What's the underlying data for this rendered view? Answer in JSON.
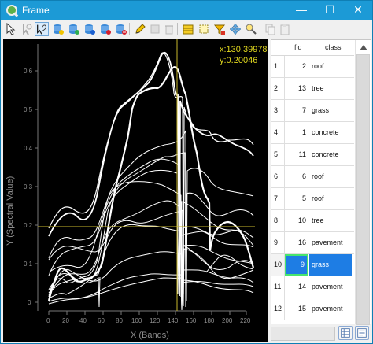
{
  "window": {
    "title": "Frame",
    "minimize": "—",
    "maximize": "☐",
    "close": "✕"
  },
  "toolbar": {
    "icons": [
      "select-arrow-icon",
      "lasso-select-icon",
      "layer-select-icon",
      "stack-yellow-icon",
      "stack-green-icon",
      "stack-blue-icon",
      "stack-red-icon",
      "stack-gray-icon",
      "edit-pencil-icon",
      "disabled-tool-icon",
      "disabled-trash-icon",
      "table-yellow-icon",
      "select-area-icon",
      "filter-icon",
      "pan-icon",
      "zoom-icon",
      "disabled-copy-icon",
      "disabled-paste-icon"
    ]
  },
  "plot": {
    "coord_x": "x:130.39978",
    "coord_y": "y:0.20046",
    "x_label": "X (Bands)",
    "y_label": "Y (Spectral Value)",
    "x_ticks": [
      "0",
      "20",
      "40",
      "60",
      "80",
      "100",
      "120",
      "140",
      "160",
      "180",
      "200",
      "220"
    ],
    "y_ticks": [
      "0",
      "0.1",
      "0.2",
      "0.3",
      "0.4",
      "0.5",
      "0.6"
    ],
    "colors": {
      "background": "#000000",
      "curve": "#ffffff",
      "crosshair": "#c8b72b"
    }
  },
  "table": {
    "headers": {
      "fid": "fid",
      "class": "class"
    },
    "rows": [
      {
        "row": "1",
        "fid": "2",
        "class": "roof"
      },
      {
        "row": "2",
        "fid": "13",
        "class": "tree"
      },
      {
        "row": "3",
        "fid": "7",
        "class": "grass"
      },
      {
        "row": "4",
        "fid": "1",
        "class": "concrete"
      },
      {
        "row": "5",
        "fid": "11",
        "class": "concrete"
      },
      {
        "row": "6",
        "fid": "6",
        "class": "roof"
      },
      {
        "row": "7",
        "fid": "5",
        "class": "roof"
      },
      {
        "row": "8",
        "fid": "10",
        "class": "tree"
      },
      {
        "row": "9",
        "fid": "16",
        "class": "pavement"
      },
      {
        "row": "10",
        "fid": "9",
        "class": "grass"
      },
      {
        "row": "11",
        "fid": "14",
        "class": "pavement"
      },
      {
        "row": "12",
        "fid": "15",
        "class": "pavement"
      }
    ],
    "selected_row": "10"
  }
}
